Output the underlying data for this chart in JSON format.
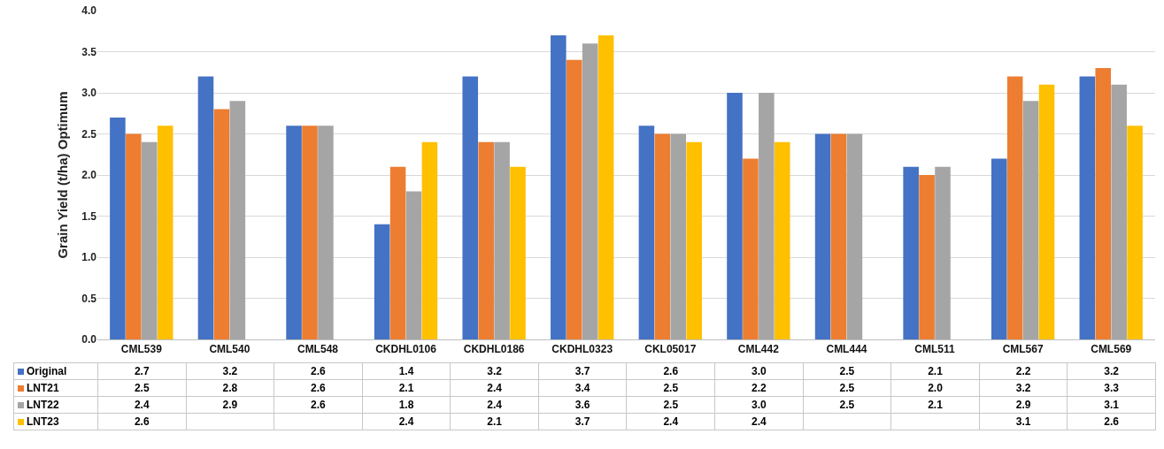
{
  "chart_data": {
    "type": "bar",
    "ylabel": "Grain Yield (t/ha) Optimum",
    "categories": [
      "CML539",
      "CML540",
      "CML548",
      "CKDHL0106",
      "CKDHL0186",
      "CKDHL0323",
      "CKL05017",
      "CML442",
      "CML444",
      "CML511",
      "CML567",
      "CML569"
    ],
    "series": [
      {
        "name": "Original",
        "color": "#4472c4",
        "values": [
          2.7,
          3.2,
          2.6,
          1.4,
          3.2,
          3.7,
          2.6,
          3.0,
          2.5,
          2.1,
          2.2,
          3.2
        ],
        "value_labels": [
          "2.7",
          "3.2",
          "2.6",
          "1.4",
          "3.2",
          "3.7",
          "2.6",
          "3.0",
          "2.5",
          "2.1",
          "2.2",
          "3.2"
        ]
      },
      {
        "name": "LNT21",
        "color": "#ed7d31",
        "values": [
          2.5,
          2.8,
          2.6,
          2.1,
          2.4,
          3.4,
          2.5,
          2.2,
          2.5,
          2.0,
          3.2,
          3.3
        ],
        "value_labels": [
          "2.5",
          "2.8",
          "2.6",
          "2.1",
          "2.4",
          "3.4",
          "2.5",
          "2.2",
          "2.5",
          "2.0",
          "3.2",
          "3.3"
        ]
      },
      {
        "name": "LNT22",
        "color": "#a5a5a5",
        "values": [
          2.4,
          2.9,
          2.6,
          1.8,
          2.4,
          3.6,
          2.5,
          3.0,
          2.5,
          2.1,
          2.9,
          3.1
        ],
        "value_labels": [
          "2.4",
          "2.9",
          "2.6",
          "1.8",
          "2.4",
          "3.6",
          "2.5",
          "3.0",
          "2.5",
          "2.1",
          "2.9",
          "3.1"
        ]
      },
      {
        "name": "LNT23",
        "color": "#ffc000",
        "values": [
          2.6,
          null,
          null,
          2.4,
          2.1,
          3.7,
          2.4,
          2.4,
          null,
          null,
          3.1,
          2.6
        ],
        "value_labels": [
          "2.6",
          null,
          null,
          "2.4",
          "2.1",
          "3.7",
          "2.4",
          "2.4",
          null,
          null,
          "3.1",
          "2.6"
        ]
      }
    ],
    "ylim": [
      0,
      4
    ],
    "yticks": [
      {
        "value": 0,
        "label": "0.0"
      },
      {
        "value": 0.5,
        "label": "0.5"
      },
      {
        "value": 1,
        "label": "1.0"
      },
      {
        "value": 1.5,
        "label": "1.5"
      },
      {
        "value": 2,
        "label": "2.0"
      },
      {
        "value": 2.5,
        "label": "2.5"
      },
      {
        "value": 3,
        "label": "3.0"
      },
      {
        "value": 3.5,
        "label": "3.5"
      },
      {
        "value": 4,
        "label": "4.0"
      }
    ],
    "grid": "y",
    "legend": "bottom"
  }
}
